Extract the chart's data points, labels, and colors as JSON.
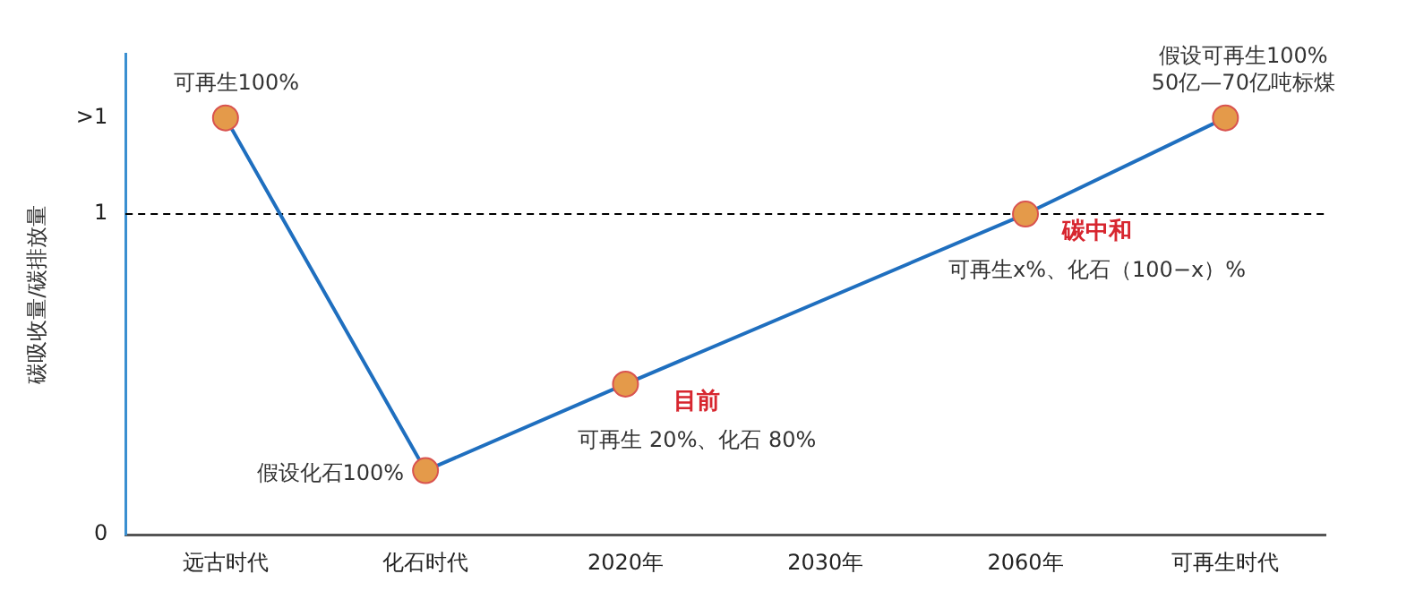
{
  "chart_data": {
    "type": "line",
    "ylabel": "碳吸收量/碳排放量",
    "categories": [
      "远古时代",
      "化石时代",
      "2020年",
      "2030年",
      "2060年",
      "可再生时代"
    ],
    "series": [
      {
        "color": "#1f6fbf",
        "values": [
          1.3,
          0.2,
          0.47,
          null,
          1,
          1.3
        ]
      }
    ],
    "ylim": [
      0,
      1.5
    ],
    "yticks": [
      0,
      1,
      {
        "value": 1.3,
        "label": ">1"
      }
    ],
    "marker": "circle",
    "line_style": "solid",
    "grid": false,
    "legend": false,
    "ref_lines": [
      {
        "axis": "y",
        "value": 1,
        "color": "#000000",
        "line_style": "dashed"
      }
    ],
    "annotations": [
      {
        "text": "可再生100%",
        "x": "远古时代",
        "y": 1.3
      },
      {
        "text": "假设化石100%",
        "x": "化石时代",
        "y": 0.2
      },
      {
        "text": "目前",
        "x": "2020年",
        "y": 0.47
      },
      {
        "text": "可再生 20%、化石 80%",
        "x": "2020年",
        "y": 0.47
      },
      {
        "text": "碳中和",
        "x": "2060年",
        "y": 1
      },
      {
        "text": "可再生x%、化石（100−x）%",
        "x": "2060年",
        "y": 1
      },
      {
        "text": "假设可再生100%",
        "x": "可再生时代",
        "y": 1.3
      },
      {
        "text": "50亿—70亿吨标煤",
        "x": "可再生时代",
        "y": 1.3
      }
    ]
  }
}
